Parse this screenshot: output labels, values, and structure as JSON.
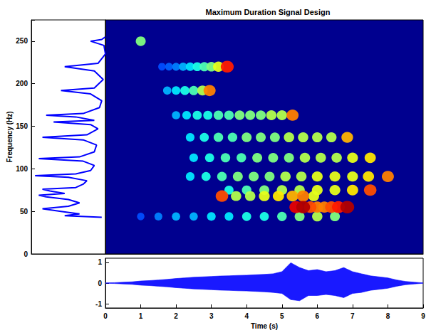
{
  "chart_data": [
    {
      "type": "line",
      "ylabel": "Frequency (Hz)",
      "color": "#0000ff",
      "frequencies": [
        43,
        45,
        47,
        50,
        53,
        56,
        60,
        64,
        67,
        69,
        71,
        74,
        76,
        78,
        82,
        86,
        90,
        92,
        94,
        98,
        104,
        109,
        112,
        114,
        120,
        128,
        134,
        137,
        140,
        147,
        152,
        155,
        157,
        161,
        163,
        165,
        172,
        180,
        188,
        192,
        195,
        205,
        215,
        220,
        224,
        235,
        245,
        250,
        252,
        255
      ],
      "values": [
        0.05,
        0.55,
        0.35,
        0.6,
        0.85,
        0.5,
        0.35,
        0.5,
        0.8,
        0.9,
        0.55,
        0.75,
        0.85,
        0.4,
        0.3,
        0.25,
        0.5,
        0.95,
        0.4,
        0.2,
        0.15,
        0.3,
        0.9,
        0.35,
        0.15,
        0.12,
        0.3,
        0.85,
        0.25,
        0.1,
        0.2,
        0.7,
        0.15,
        0.4,
        0.8,
        0.3,
        0.08,
        0.05,
        0.2,
        0.6,
        0.15,
        0.03,
        0.15,
        0.55,
        0.1,
        0.0,
        0.02,
        0.2,
        0.05,
        0.0
      ],
      "xlim": [
        1,
        0
      ],
      "ylim": [
        0,
        275
      ],
      "yticks": [
        0,
        50,
        100,
        150,
        200,
        250
      ],
      "tick_labels": "y"
    },
    {
      "type": "spectrogram",
      "title": "Maximum Duration Signal Design",
      "xlim": [
        0,
        9
      ],
      "ylim": [
        0,
        275
      ],
      "zlim": [
        0,
        1
      ],
      "tick_labels": false,
      "tracks": [
        {
          "frequency": 250,
          "times": [
            1.0
          ],
          "intensities": [
            0.5
          ]
        },
        {
          "frequency": 220,
          "times": [
            1.6,
            1.8,
            2.0,
            2.2,
            2.4,
            2.6,
            2.8,
            3.0,
            3.2,
            3.45
          ],
          "intensities": [
            0.2,
            0.22,
            0.25,
            0.3,
            0.35,
            0.4,
            0.45,
            0.5,
            0.6,
            0.85
          ]
        },
        {
          "frequency": 192,
          "times": [
            1.75,
            2.0,
            2.25,
            2.5,
            2.75,
            2.95
          ],
          "intensities": [
            0.3,
            0.35,
            0.4,
            0.45,
            0.55,
            0.75
          ]
        },
        {
          "frequency": 163,
          "times": [
            2.0,
            2.3,
            2.6,
            2.9,
            3.2,
            3.5,
            3.8,
            4.1,
            4.4,
            4.7,
            5.0,
            5.3
          ],
          "intensities": [
            0.3,
            0.35,
            0.4,
            0.4,
            0.45,
            0.45,
            0.5,
            0.5,
            0.5,
            0.55,
            0.55,
            0.75
          ]
        },
        {
          "frequency": 137,
          "times": [
            2.4,
            2.8,
            3.2,
            3.6,
            4.0,
            4.4,
            4.8,
            5.2,
            5.6,
            6.0,
            6.4,
            6.85
          ],
          "intensities": [
            0.35,
            0.4,
            0.45,
            0.45,
            0.5,
            0.5,
            0.5,
            0.55,
            0.55,
            0.55,
            0.55,
            0.7
          ]
        },
        {
          "frequency": 113,
          "times": [
            2.5,
            2.95,
            3.4,
            3.85,
            4.3,
            4.75,
            5.2,
            5.65,
            6.1,
            6.55,
            7.0,
            7.5
          ],
          "intensities": [
            0.35,
            0.4,
            0.45,
            0.45,
            0.5,
            0.5,
            0.5,
            0.55,
            0.55,
            0.55,
            0.6,
            0.65
          ]
        },
        {
          "frequency": 91,
          "times": [
            2.4,
            2.85,
            3.3,
            3.75,
            4.2,
            4.65,
            5.1,
            5.55,
            6.0,
            6.5,
            7.0,
            7.45,
            8.0
          ],
          "intensities": [
            0.35,
            0.4,
            0.45,
            0.5,
            0.5,
            0.5,
            0.55,
            0.55,
            0.6,
            0.6,
            0.6,
            0.65,
            0.75
          ]
        },
        {
          "frequency": 75,
          "times": [
            3.5,
            4.0,
            4.5,
            5.0,
            5.5,
            6.0,
            6.5,
            7.0,
            7.5
          ],
          "intensities": [
            0.4,
            0.45,
            0.5,
            0.55,
            0.55,
            0.6,
            0.6,
            0.65,
            0.8
          ]
        },
        {
          "frequency": 68,
          "times": [
            3.3,
            3.7,
            4.1,
            4.5,
            4.9,
            5.3,
            5.6,
            5.9
          ],
          "intensities": [
            0.8,
            0.55,
            0.55,
            0.6,
            0.65,
            0.7,
            0.75,
            0.6
          ]
        },
        {
          "frequency": 55,
          "times": [
            5.4,
            5.6,
            5.8,
            6.0,
            6.2,
            6.4,
            6.6,
            6.85
          ],
          "intensities": [
            0.9,
            0.95,
            0.8,
            0.75,
            0.75,
            0.8,
            0.85,
            0.95
          ]
        },
        {
          "frequency": 44,
          "times": [
            1.0,
            1.5,
            2.0,
            2.5,
            3.0,
            3.5,
            4.0,
            4.5,
            5.0,
            5.5,
            6.0,
            6.5
          ],
          "intensities": [
            0.2,
            0.25,
            0.3,
            0.3,
            0.35,
            0.35,
            0.4,
            0.4,
            0.45,
            0.5,
            0.55,
            0.5
          ]
        }
      ]
    },
    {
      "type": "line",
      "xlabel": "Time (s)",
      "color": "#0000ff",
      "x": [
        0,
        0.25,
        0.5,
        0.75,
        1,
        1.25,
        1.5,
        1.75,
        2,
        2.25,
        2.5,
        2.75,
        3,
        3.25,
        3.5,
        3.75,
        4,
        4.25,
        4.5,
        4.75,
        5,
        5.25,
        5.5,
        5.75,
        6,
        6.25,
        6.5,
        6.75,
        7,
        7.25,
        7.5,
        7.75,
        8,
        8.25,
        8.5,
        8.75,
        9
      ],
      "values": [
        0.01,
        0.02,
        0.04,
        0.06,
        0.1,
        0.12,
        0.15,
        0.18,
        0.22,
        0.25,
        0.28,
        0.3,
        0.32,
        0.34,
        0.35,
        0.37,
        0.38,
        0.4,
        0.42,
        0.45,
        0.55,
        0.98,
        0.75,
        0.6,
        0.65,
        0.55,
        0.6,
        0.75,
        0.55,
        0.45,
        0.35,
        0.3,
        0.25,
        0.15,
        0.08,
        0.04,
        0.01
      ],
      "lower": [
        -0.01,
        -0.02,
        -0.04,
        -0.06,
        -0.1,
        -0.12,
        -0.15,
        -0.18,
        -0.22,
        -0.25,
        -0.28,
        -0.3,
        -0.32,
        -0.34,
        -0.35,
        -0.37,
        -0.38,
        -0.4,
        -0.42,
        -0.45,
        -0.5,
        -0.8,
        -0.85,
        -0.6,
        -0.6,
        -0.55,
        -0.6,
        -0.7,
        -0.5,
        -0.45,
        -0.35,
        -0.3,
        -0.25,
        -0.15,
        -0.08,
        -0.04,
        -0.01
      ],
      "xlim": [
        0,
        9
      ],
      "xticks": [
        0,
        1,
        2,
        3,
        4,
        5,
        6,
        7,
        8,
        9
      ],
      "ylim": [
        -1.2,
        1.2
      ],
      "yticks": [
        -1,
        0,
        1
      ]
    }
  ]
}
